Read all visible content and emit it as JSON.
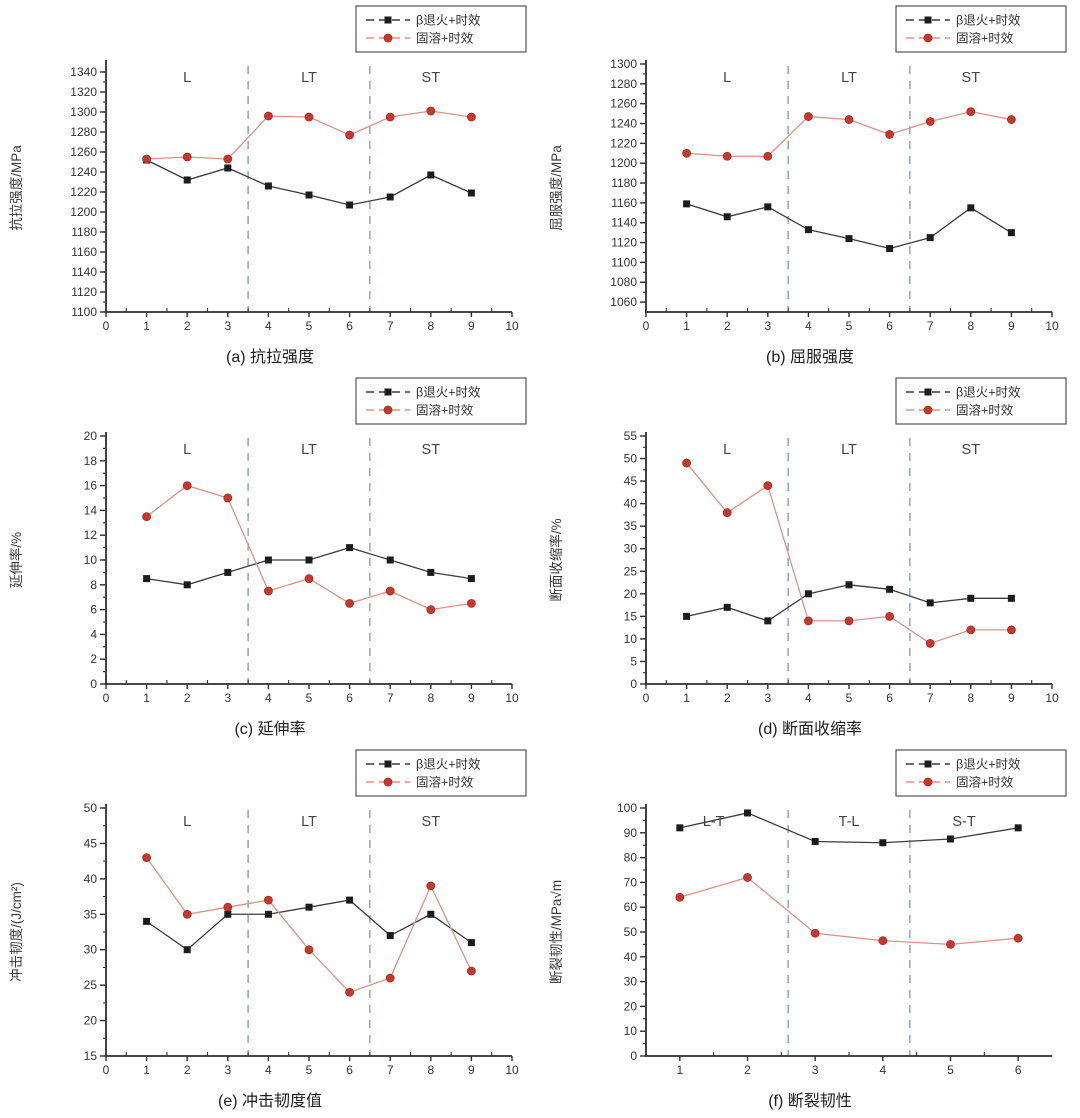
{
  "style": {
    "background": "#ffffff",
    "axis_color": "#2e2e2e",
    "text_color": "#3a3a3a",
    "tick_label_color": "#333333",
    "divider_color": "#8494b4",
    "region_label_color": "#444444",
    "series1_color": "#1c1c1c",
    "series1_line": "#3c3c3c",
    "series2_color": "#c5392d",
    "series2_line": "#d9938a",
    "series2_edge": "#a42b21",
    "legend_border": "#444444"
  },
  "chart_data": [
    {
      "type": "line",
      "id": "a",
      "caption": "(a) 抗拉强度",
      "ylabel": "抗拉强度/MPa",
      "xlim": [
        0,
        10
      ],
      "xticks": [
        0,
        1,
        2,
        3,
        4,
        5,
        6,
        7,
        8,
        9,
        10
      ],
      "ylim": [
        1100,
        1348
      ],
      "yticks": [
        1100,
        1120,
        1140,
        1160,
        1180,
        1200,
        1220,
        1240,
        1260,
        1280,
        1300,
        1320,
        1340
      ],
      "x": [
        1,
        2,
        3,
        4,
        5,
        6,
        7,
        8,
        9
      ],
      "dividers": [
        3.5,
        6.5
      ],
      "regions": [
        {
          "label": "L",
          "x": 2
        },
        {
          "label": "LT",
          "x": 5
        },
        {
          "label": "ST",
          "x": 8
        }
      ],
      "series": [
        {
          "name": "β退火+时效",
          "marker": "square",
          "values": [
            1252,
            1232,
            1244,
            1226,
            1217,
            1207,
            1215,
            1237,
            1219
          ]
        },
        {
          "name": "固溶+时效",
          "marker": "circle",
          "values": [
            1253,
            1255,
            1253,
            1296,
            1295,
            1277,
            1295,
            1301,
            1295
          ]
        }
      ]
    },
    {
      "type": "line",
      "id": "b",
      "caption": "(b) 屈服强度",
      "ylabel": "屈服强度/MPa",
      "xlim": [
        0,
        10
      ],
      "xticks": [
        0,
        1,
        2,
        3,
        4,
        5,
        6,
        7,
        8,
        9,
        10
      ],
      "ylim": [
        1050,
        1300
      ],
      "yticks": [
        1060,
        1080,
        1100,
        1120,
        1140,
        1160,
        1180,
        1200,
        1220,
        1240,
        1260,
        1280,
        1300
      ],
      "x": [
        1,
        2,
        3,
        4,
        5,
        6,
        7,
        8,
        9
      ],
      "dividers": [
        3.5,
        6.5
      ],
      "regions": [
        {
          "label": "L",
          "x": 2
        },
        {
          "label": "LT",
          "x": 5
        },
        {
          "label": "ST",
          "x": 8
        }
      ],
      "series": [
        {
          "name": "β退火+时效",
          "marker": "square",
          "values": [
            1159,
            1146,
            1156,
            1133,
            1124,
            1114,
            1125,
            1155,
            1130
          ]
        },
        {
          "name": "固溶+时效",
          "marker": "circle",
          "values": [
            1210,
            1207,
            1207,
            1247,
            1244,
            1229,
            1242,
            1252,
            1244
          ]
        }
      ]
    },
    {
      "type": "line",
      "id": "c",
      "caption": "(c) 延伸率",
      "ylabel": "延伸率/%",
      "xlim": [
        0,
        10
      ],
      "xticks": [
        0,
        1,
        2,
        3,
        4,
        5,
        6,
        7,
        8,
        9,
        10
      ],
      "ylim": [
        0,
        20
      ],
      "yticks": [
        0,
        2,
        4,
        6,
        8,
        10,
        12,
        14,
        16,
        18,
        20
      ],
      "x": [
        1,
        2,
        3,
        4,
        5,
        6,
        7,
        8,
        9
      ],
      "dividers": [
        3.5,
        6.5
      ],
      "regions": [
        {
          "label": "L",
          "x": 2
        },
        {
          "label": "LT",
          "x": 5
        },
        {
          "label": "ST",
          "x": 8
        }
      ],
      "series": [
        {
          "name": "β退火+时效",
          "marker": "square",
          "values": [
            8.5,
            8,
            9,
            10,
            10,
            11,
            10,
            9,
            8.5
          ]
        },
        {
          "name": "固溶+时效",
          "marker": "circle",
          "values": [
            13.5,
            16,
            15,
            7.5,
            8.5,
            6.5,
            7.5,
            6,
            6.5
          ]
        }
      ]
    },
    {
      "type": "line",
      "id": "d",
      "caption": "(d) 断面收缩率",
      "ylabel": "断面收缩率/%",
      "xlim": [
        0,
        10
      ],
      "xticks": [
        0,
        1,
        2,
        3,
        4,
        5,
        6,
        7,
        8,
        9,
        10
      ],
      "ylim": [
        0,
        55
      ],
      "yticks": [
        0,
        5,
        10,
        15,
        20,
        25,
        30,
        35,
        40,
        45,
        50,
        55
      ],
      "x": [
        1,
        2,
        3,
        4,
        5,
        6,
        7,
        8,
        9
      ],
      "dividers": [
        3.5,
        6.5
      ],
      "regions": [
        {
          "label": "L",
          "x": 2
        },
        {
          "label": "LT",
          "x": 5
        },
        {
          "label": "ST",
          "x": 8
        }
      ],
      "series": [
        {
          "name": "β退火+时效",
          "marker": "square",
          "values": [
            15,
            17,
            14,
            20,
            22,
            21,
            18,
            19,
            19
          ]
        },
        {
          "name": "固溶+时效",
          "marker": "circle",
          "values": [
            49,
            38,
            44,
            14,
            14,
            15,
            9,
            12,
            12
          ]
        }
      ]
    },
    {
      "type": "line",
      "id": "e",
      "caption": "(e) 冲击韧度值",
      "ylabel": "冲击韧度/(J/cm²)",
      "xlim": [
        0,
        10
      ],
      "xticks": [
        0,
        1,
        2,
        3,
        4,
        5,
        6,
        7,
        8,
        9,
        10
      ],
      "ylim": [
        15,
        50
      ],
      "yticks": [
        15,
        20,
        25,
        30,
        35,
        40,
        45,
        50
      ],
      "x": [
        1,
        2,
        3,
        4,
        5,
        6,
        7,
        8,
        9
      ],
      "dividers": [
        3.5,
        6.5
      ],
      "regions": [
        {
          "label": "L",
          "x": 2
        },
        {
          "label": "LT",
          "x": 5
        },
        {
          "label": "ST",
          "x": 8
        }
      ],
      "series": [
        {
          "name": "β退火+时效",
          "marker": "square",
          "values": [
            34,
            30,
            35,
            35,
            36,
            37,
            32,
            35,
            31
          ]
        },
        {
          "name": "固溶+时效",
          "marker": "circle",
          "values": [
            43,
            35,
            36,
            37,
            30,
            24,
            26,
            39,
            27
          ]
        }
      ]
    },
    {
      "type": "line",
      "id": "f",
      "caption": "(f) 断裂韧性",
      "ylabel": "断裂韧性/MPa√m",
      "xlim": [
        0.5,
        6.5
      ],
      "xticks": [
        1,
        2,
        3,
        4,
        5,
        6
      ],
      "ylim": [
        0,
        100
      ],
      "yticks": [
        0,
        10,
        20,
        30,
        40,
        50,
        60,
        70,
        80,
        90,
        100
      ],
      "x": [
        1,
        2,
        3,
        4,
        5,
        6
      ],
      "dividers": [
        2.6,
        4.4
      ],
      "regions": [
        {
          "label": "L-T",
          "x": 1.5
        },
        {
          "label": "T-L",
          "x": 3.5
        },
        {
          "label": "S-T",
          "x": 5.2
        }
      ],
      "series": [
        {
          "name": "β退火+时效",
          "marker": "square",
          "values": [
            92,
            98,
            86.5,
            86,
            87.5,
            92
          ]
        },
        {
          "name": "固溶+时效",
          "marker": "circle",
          "values": [
            64,
            72,
            49.5,
            46.5,
            45,
            47.5
          ]
        }
      ]
    }
  ]
}
